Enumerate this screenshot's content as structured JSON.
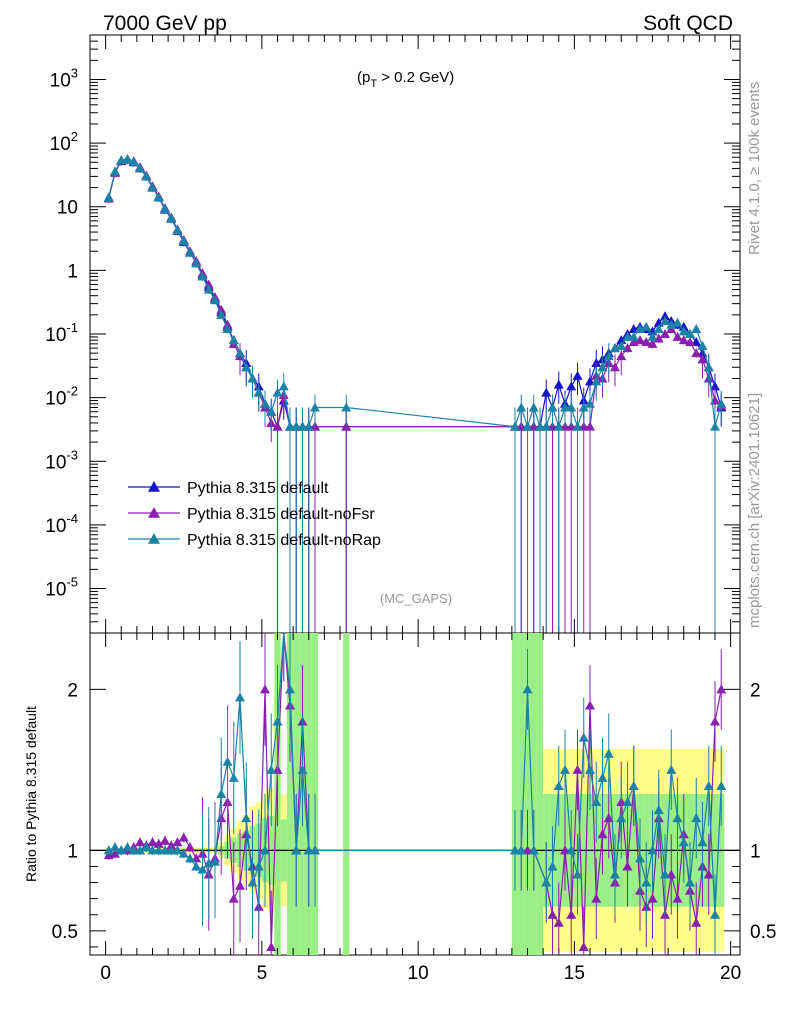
{
  "header": {
    "left": "7000 GeV pp",
    "right": "Soft QCD",
    "side_top": "Rivet 4.1.0, ≥ 100k events",
    "side_bottom": "mcplots.cern.ch [arXiv:2401.10621]"
  },
  "chart_data": [
    {
      "type": "line",
      "panel": "main",
      "annotation_top": "(p_T > 0.2 GeV)",
      "annotation_top_text": "(p",
      "annotation_top_sub": "T",
      "annotation_top_rest": " > 0.2 GeV)",
      "analysis_label": "(MC_GAPS)",
      "yscale": "log",
      "xlim": [
        -0.5,
        20.3
      ],
      "ylim": [
        2e-06,
        5000
      ],
      "y_tick_labels": [
        "10^-5",
        "10^-4",
        "10^-3",
        "10^-2",
        "10^-1",
        "1",
        "10",
        "10^2",
        "10^3"
      ],
      "legend": {
        "placement": "bottom-left",
        "entries": [
          "Pythia 8.315 default",
          "Pythia 8.315 default-noFsr",
          "Pythia 8.315 default-noRap"
        ]
      },
      "series": [
        {
          "name": "Pythia 8.315 default",
          "color": "#1515c8",
          "x": [
            0.1,
            0.3,
            0.5,
            0.7,
            0.9,
            1.1,
            1.3,
            1.5,
            1.7,
            1.9,
            2.1,
            2.3,
            2.5,
            2.7,
            2.9,
            3.1,
            3.3,
            3.5,
            3.7,
            3.9,
            4.1,
            4.3,
            4.5,
            4.7,
            4.9,
            5.1,
            5.3,
            5.5,
            5.7,
            5.9,
            6.1,
            6.3,
            6.5,
            6.7,
            7.7,
            13.1,
            13.3,
            13.5,
            13.7,
            13.9,
            14.1,
            14.3,
            14.5,
            14.7,
            14.9,
            15.1,
            15.3,
            15.5,
            15.7,
            15.9,
            16.1,
            16.3,
            16.5,
            16.7,
            16.9,
            17.1,
            17.3,
            17.5,
            17.7,
            17.9,
            18.1,
            18.3,
            18.5,
            18.7,
            18.9,
            19.1,
            19.3,
            19.5,
            19.7
          ],
          "values": [
            14,
            35,
            52,
            55,
            50,
            40,
            30,
            20,
            14,
            9,
            6.5,
            4.2,
            2.8,
            1.9,
            1.3,
            0.85,
            0.55,
            0.36,
            0.22,
            0.13,
            0.08,
            0.05,
            0.035,
            0.02,
            0.015,
            0.008,
            0.006,
            0.0035,
            0.009,
            0.0035,
            0.0035,
            0.0035,
            0.0035,
            0.0035,
            0.0035,
            0.0035,
            0.0035,
            0.0035,
            0.0035,
            0.0035,
            0.012,
            0.007,
            0.016,
            0.008,
            0.015,
            0.022,
            0.009,
            0.018,
            0.035,
            0.04,
            0.05,
            0.06,
            0.08,
            0.1,
            0.12,
            0.13,
            0.12,
            0.11,
            0.15,
            0.19,
            0.16,
            0.14,
            0.13,
            0.1,
            0.075,
            0.05,
            0.03,
            0.015,
            0.007
          ]
        },
        {
          "name": "Pythia 8.315 default-noFsr",
          "color": "#8b1fb0",
          "x": [
            0.1,
            0.3,
            0.5,
            0.7,
            0.9,
            1.1,
            1.3,
            1.5,
            1.7,
            1.9,
            2.1,
            2.3,
            2.5,
            2.7,
            2.9,
            3.1,
            3.3,
            3.5,
            3.7,
            3.9,
            4.1,
            4.3,
            4.5,
            4.7,
            4.9,
            5.1,
            5.3,
            5.5,
            5.7,
            5.9,
            6.1,
            6.3,
            6.5,
            6.7,
            7.7,
            13.1,
            13.3,
            13.5,
            13.7,
            13.9,
            14.1,
            14.3,
            14.5,
            14.7,
            14.9,
            15.1,
            15.3,
            15.5,
            15.7,
            15.9,
            16.1,
            16.3,
            16.5,
            16.7,
            16.9,
            17.1,
            17.3,
            17.5,
            17.7,
            17.9,
            18.1,
            18.3,
            18.5,
            18.7,
            18.9,
            19.1,
            19.3,
            19.5,
            19.7
          ],
          "values": [
            13.5,
            34,
            53,
            56,
            52,
            42,
            31,
            21,
            14.5,
            9.5,
            6.8,
            4.4,
            3.0,
            2.0,
            1.4,
            0.9,
            0.6,
            0.38,
            0.24,
            0.14,
            0.07,
            0.045,
            0.03,
            0.02,
            0.012,
            0.007,
            0.004,
            0.0035,
            0.011,
            0.0035,
            0.0035,
            0.0035,
            0.0035,
            0.0035,
            0.0035,
            0.0035,
            0.0035,
            0.0035,
            0.0035,
            0.0035,
            0.0035,
            0.0035,
            0.0035,
            0.0035,
            0.0035,
            0.0035,
            0.0035,
            0.0035,
            0.022,
            0.02,
            0.035,
            0.03,
            0.045,
            0.06,
            0.075,
            0.08,
            0.075,
            0.07,
            0.085,
            0.1,
            0.12,
            0.09,
            0.08,
            0.075,
            0.05,
            0.04,
            0.02,
            0.009,
            0.0075
          ]
        },
        {
          "name": "Pythia 8.315 default-noRap",
          "color": "#1b83a6",
          "x": [
            0.1,
            0.3,
            0.5,
            0.7,
            0.9,
            1.1,
            1.3,
            1.5,
            1.7,
            1.9,
            2.1,
            2.3,
            2.5,
            2.7,
            2.9,
            3.1,
            3.3,
            3.5,
            3.7,
            3.9,
            4.1,
            4.3,
            4.5,
            4.7,
            4.9,
            5.1,
            5.3,
            5.5,
            5.7,
            5.9,
            6.1,
            6.3,
            6.5,
            6.7,
            7.7,
            13.1,
            13.3,
            13.5,
            13.7,
            13.9,
            14.1,
            14.3,
            14.5,
            14.7,
            14.9,
            15.1,
            15.3,
            15.5,
            15.7,
            15.9,
            16.1,
            16.3,
            16.5,
            16.7,
            16.9,
            17.1,
            17.3,
            17.5,
            17.7,
            17.9,
            18.1,
            18.3,
            18.5,
            18.7,
            18.9,
            19.1,
            19.3,
            19.5,
            19.7
          ],
          "values": [
            14,
            36,
            54,
            56,
            51,
            40,
            30,
            20,
            14,
            9.2,
            6.6,
            4.3,
            2.9,
            1.9,
            1.3,
            0.8,
            0.5,
            0.34,
            0.2,
            0.12,
            0.08,
            0.05,
            0.03,
            0.02,
            0.012,
            0.008,
            0.006,
            0.012,
            0.015,
            0.0035,
            0.0035,
            0.0035,
            0.0035,
            0.007,
            0.007,
            0.0035,
            0.007,
            0.0035,
            0.007,
            0.0035,
            0.0035,
            0.007,
            0.0035,
            0.007,
            0.007,
            0.0035,
            0.007,
            0.008,
            0.018,
            0.03,
            0.045,
            0.06,
            0.065,
            0.09,
            0.09,
            0.12,
            0.13,
            0.09,
            0.12,
            0.16,
            0.14,
            0.15,
            0.11,
            0.1,
            0.12,
            0.065,
            0.03,
            0.0035,
            0.008
          ]
        }
      ]
    },
    {
      "type": "line",
      "panel": "ratio",
      "ylabel": "Ratio to Pythia 8.315 default",
      "xlim": [
        -0.5,
        20.3
      ],
      "ylim": [
        0.35,
        2.35
      ],
      "y_tick_labels": [
        "0.5",
        "1",
        "2"
      ],
      "x_tick_labels": [
        "0",
        "5",
        "10",
        "15",
        "20"
      ],
      "reference_line": 1,
      "series": [
        {
          "name": "Pythia 8.315 default-noFsr",
          "color": "#8b1fb0",
          "x": [
            0.1,
            0.3,
            0.5,
            0.7,
            0.9,
            1.1,
            1.3,
            1.5,
            1.7,
            1.9,
            2.1,
            2.3,
            2.5,
            2.7,
            2.9,
            3.1,
            3.3,
            3.5,
            3.7,
            3.9,
            4.1,
            4.3,
            4.5,
            4.7,
            4.9,
            5.1,
            5.3,
            5.5,
            5.7,
            5.9,
            6.1,
            6.3,
            6.5,
            6.7,
            13.1,
            13.3,
            13.5,
            13.7,
            14.1,
            14.3,
            14.5,
            14.7,
            14.9,
            15.1,
            15.3,
            15.5,
            15.7,
            15.9,
            16.1,
            16.3,
            16.5,
            16.7,
            16.9,
            17.1,
            17.3,
            17.5,
            17.7,
            17.9,
            18.1,
            18.3,
            18.5,
            18.7,
            18.9,
            19.1,
            19.3,
            19.5,
            19.7
          ],
          "values": [
            0.97,
            0.98,
            1.0,
            1.0,
            1.02,
            1.05,
            1.03,
            1.05,
            1.04,
            1.06,
            1.03,
            1.05,
            1.08,
            1.02,
            0.95,
            0.98,
            0.85,
            0.95,
            1.2,
            1.3,
            0.7,
            0.78,
            1.1,
            0.9,
            0.65,
            2.0,
            0.4,
            1.5,
            2.4,
            1.9,
            1.0,
            1.8,
            1.0,
            1.0,
            1.0,
            1.0,
            1.0,
            1.0,
            0.8,
            0.6,
            0.55,
            1.0,
            0.6,
            1.5,
            0.4,
            1.9,
            0.7,
            1.1,
            1.2,
            0.8,
            1.3,
            0.9,
            1.4,
            0.75,
            0.65,
            0.7,
            1.2,
            0.6,
            0.85,
            0.7,
            1.1,
            0.75,
            0.55,
            0.9,
            0.85,
            1.8,
            2.0
          ]
        },
        {
          "name": "Pythia 8.315 default-noRap",
          "color": "#1b83a6",
          "x": [
            0.1,
            0.3,
            0.5,
            0.7,
            0.9,
            1.1,
            1.3,
            1.5,
            1.7,
            1.9,
            2.1,
            2.3,
            2.5,
            2.7,
            2.9,
            3.1,
            3.3,
            3.5,
            3.7,
            3.9,
            4.1,
            4.3,
            4.5,
            4.7,
            4.9,
            5.1,
            5.3,
            5.5,
            5.7,
            5.9,
            6.1,
            6.3,
            6.5,
            6.7,
            13.1,
            13.3,
            13.5,
            13.7,
            14.1,
            14.3,
            14.5,
            14.7,
            14.9,
            15.1,
            15.3,
            15.5,
            15.7,
            15.9,
            16.1,
            16.3,
            16.5,
            16.7,
            16.9,
            17.1,
            17.3,
            17.5,
            17.7,
            17.9,
            18.1,
            18.3,
            18.5,
            18.7,
            18.9,
            19.1,
            19.3,
            19.5,
            19.7
          ],
          "values": [
            1.0,
            1.02,
            1.0,
            1.02,
            1.0,
            1.0,
            1.02,
            1.0,
            1.0,
            1.0,
            1.0,
            1.0,
            0.98,
            0.95,
            0.9,
            0.88,
            0.92,
            0.93,
            1.35,
            1.55,
            1.45,
            1.95,
            1.2,
            0.8,
            0.9,
            1.0,
            1.5,
            1.8,
            2.4,
            2.0,
            1.0,
            1.5,
            1.0,
            1.0,
            1.0,
            1.0,
            2.0,
            1.0,
            0.8,
            0.9,
            1.4,
            1.5,
            1.0,
            0.85,
            1.7,
            1.5,
            1.3,
            1.45,
            1.6,
            0.85,
            1.2,
            1.3,
            1.4,
            0.95,
            0.8,
            1.0,
            1.25,
            0.85,
            1.5,
            1.2,
            1.05,
            0.8,
            1.2,
            1.05,
            1.4,
            0.6,
            1.4
          ]
        }
      ]
    }
  ]
}
